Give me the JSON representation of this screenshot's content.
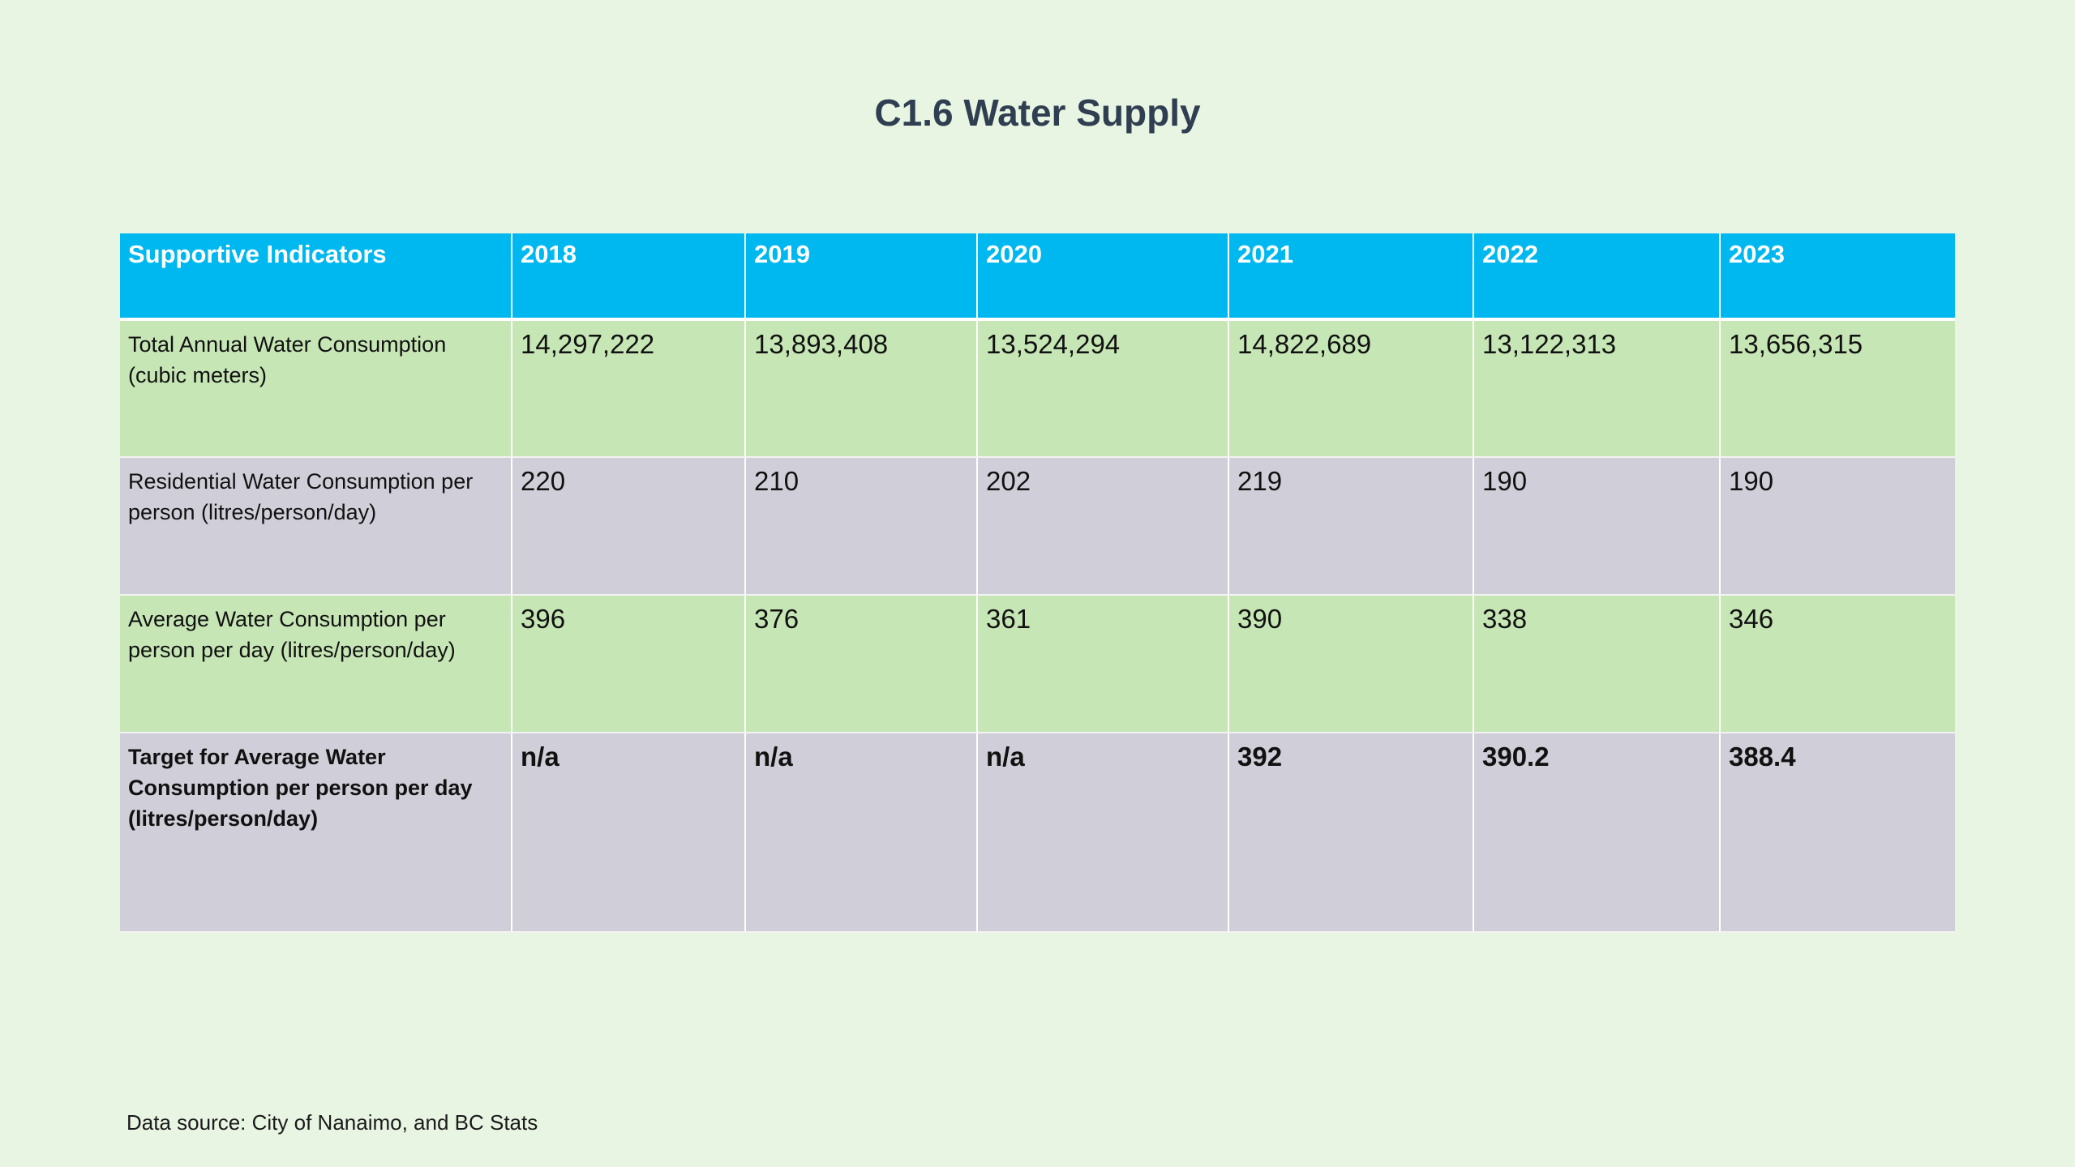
{
  "title": "C1.6 Water Supply",
  "table": {
    "header": {
      "label": "Supportive Indicators",
      "years": [
        "2018",
        "2019",
        "2020",
        "2021",
        "2022",
        "2023"
      ]
    },
    "rows": [
      {
        "label": "Total Annual Water Consumption (cubic meters)",
        "values": [
          "14,297,222",
          "13,893,408",
          "13,524,294",
          "14,822,689",
          "13,122,313",
          "13,656,315"
        ]
      },
      {
        "label": "Residential Water Consumption per person (litres/person/day)",
        "values": [
          "220",
          "210",
          "202",
          "219",
          "190",
          "190"
        ]
      },
      {
        "label": "Average Water Consumption per person per day (litres/person/day)",
        "values": [
          "396",
          "376",
          "361",
          "390",
          "338",
          "346"
        ]
      },
      {
        "label": "Target for Average Water Consumption per person per day (litres/person/day)",
        "values": [
          "n/a",
          "n/a",
          "n/a",
          "392",
          "390.2",
          "388.4"
        ]
      }
    ]
  },
  "source": "Data source: City of Nanaimo, and BC Stats",
  "colors": {
    "background": "#e9f5e3",
    "header": "#00b8f0",
    "row_green": "#c6e6b5",
    "row_gray": "#d0cfd9",
    "title": "#2f3e50"
  }
}
